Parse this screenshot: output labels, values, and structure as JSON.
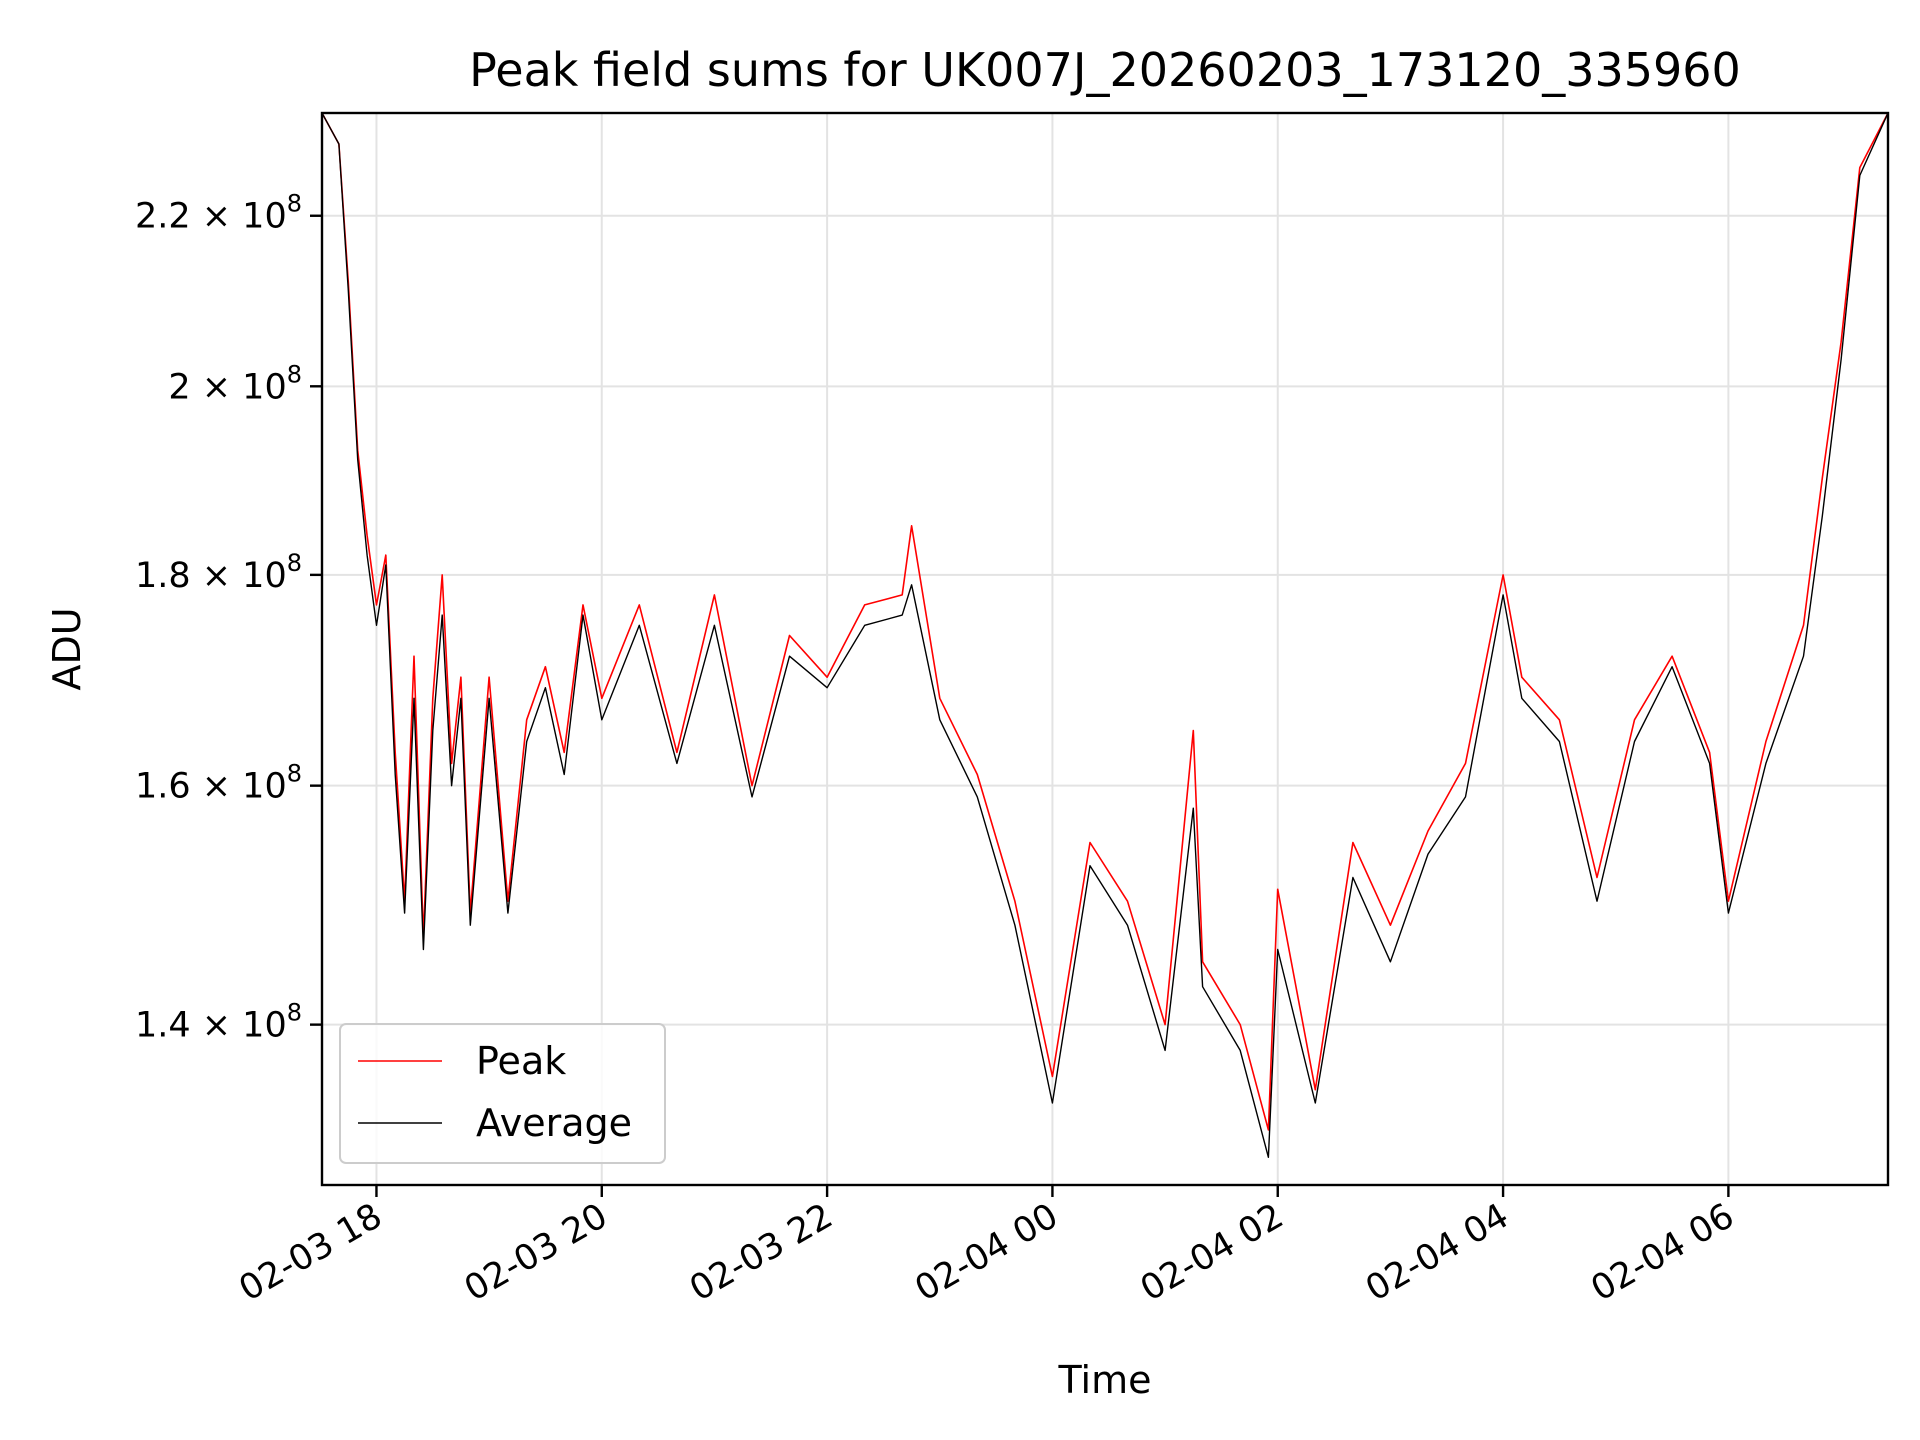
{
  "chart_data": {
    "type": "line",
    "title": "Peak field sums for UK007J_20260203_173120_335960",
    "xlabel": "Time",
    "ylabel": "ADU",
    "y_scale": "log",
    "grid": true,
    "legend_position": "lower-left",
    "xlim": [
      "2026-02-03 17:31",
      "2026-02-04 07:25"
    ],
    "ylim": [
      128000000,
      233000000
    ],
    "x_ticks": [
      {
        "value": "2026-02-03 18:00",
        "label": "02-03 18"
      },
      {
        "value": "2026-02-03 20:00",
        "label": "02-03 20"
      },
      {
        "value": "2026-02-03 22:00",
        "label": "02-03 22"
      },
      {
        "value": "2026-02-04 00:00",
        "label": "02-04 00"
      },
      {
        "value": "2026-02-04 02:00",
        "label": "02-04 02"
      },
      {
        "value": "2026-02-04 04:00",
        "label": "02-04 04"
      },
      {
        "value": "2026-02-04 06:00",
        "label": "02-04 06"
      }
    ],
    "y_ticks": [
      {
        "value": 140000000,
        "mantissa": "1.4",
        "base": "10",
        "exp": "8"
      },
      {
        "value": 160000000,
        "mantissa": "1.6",
        "base": "10",
        "exp": "8"
      },
      {
        "value": 180000000,
        "mantissa": "1.8",
        "base": "10",
        "exp": "8"
      },
      {
        "value": 200000000,
        "mantissa": "2",
        "base": "10",
        "exp": "8"
      },
      {
        "value": 220000000,
        "mantissa": "2.2",
        "base": "10",
        "exp": "8"
      }
    ],
    "series": [
      {
        "name": "Peak",
        "color": "#ff0000",
        "x": [
          "2026-02-03 17:31",
          "2026-02-03 17:40",
          "2026-02-03 17:45",
          "2026-02-03 17:50",
          "2026-02-03 17:55",
          "2026-02-03 18:00",
          "2026-02-03 18:05",
          "2026-02-03 18:10",
          "2026-02-03 18:15",
          "2026-02-03 18:20",
          "2026-02-03 18:25",
          "2026-02-03 18:30",
          "2026-02-03 18:35",
          "2026-02-03 18:40",
          "2026-02-03 18:45",
          "2026-02-03 18:50",
          "2026-02-03 19:00",
          "2026-02-03 19:10",
          "2026-02-03 19:20",
          "2026-02-03 19:30",
          "2026-02-03 19:40",
          "2026-02-03 19:50",
          "2026-02-03 20:00",
          "2026-02-03 20:20",
          "2026-02-03 20:40",
          "2026-02-03 21:00",
          "2026-02-03 21:20",
          "2026-02-03 21:40",
          "2026-02-03 22:00",
          "2026-02-03 22:20",
          "2026-02-03 22:40",
          "2026-02-03 22:45",
          "2026-02-03 23:00",
          "2026-02-03 23:20",
          "2026-02-03 23:40",
          "2026-02-04 00:00",
          "2026-02-04 00:20",
          "2026-02-04 00:40",
          "2026-02-04 01:00",
          "2026-02-04 01:15",
          "2026-02-04 01:20",
          "2026-02-04 01:40",
          "2026-02-04 01:55",
          "2026-02-04 02:00",
          "2026-02-04 02:20",
          "2026-02-04 02:40",
          "2026-02-04 03:00",
          "2026-02-04 03:20",
          "2026-02-04 03:40",
          "2026-02-04 04:00",
          "2026-02-04 04:10",
          "2026-02-04 04:30",
          "2026-02-04 04:50",
          "2026-02-04 05:10",
          "2026-02-04 05:30",
          "2026-02-04 05:50",
          "2026-02-04 06:00",
          "2026-02-04 06:20",
          "2026-02-04 06:40",
          "2026-02-04 06:50",
          "2026-02-04 07:00",
          "2026-02-04 07:10",
          "2026-02-04 07:25"
        ],
        "values": [
          233000000,
          229000000,
          212000000,
          193000000,
          184000000,
          177000000,
          182000000,
          163000000,
          150000000,
          172000000,
          147000000,
          168000000,
          180000000,
          162000000,
          170000000,
          149000000,
          170000000,
          150000000,
          166000000,
          171000000,
          163000000,
          177000000,
          168000000,
          177000000,
          163000000,
          178000000,
          160000000,
          174000000,
          170000000,
          177000000,
          178000000,
          185000000,
          168000000,
          161000000,
          150000000,
          136000000,
          155000000,
          150000000,
          140000000,
          165000000,
          145000000,
          140000000,
          132000000,
          151000000,
          135000000,
          155000000,
          148000000,
          156000000,
          162000000,
          180000000,
          170000000,
          166000000,
          152000000,
          166000000,
          172000000,
          163000000,
          150000000,
          164000000,
          175000000,
          190000000,
          205000000,
          226000000,
          233000000
        ]
      },
      {
        "name": "Average",
        "color": "#000000",
        "x": [
          "2026-02-03 17:31",
          "2026-02-03 17:40",
          "2026-02-03 17:45",
          "2026-02-03 17:50",
          "2026-02-03 17:55",
          "2026-02-03 18:00",
          "2026-02-03 18:05",
          "2026-02-03 18:10",
          "2026-02-03 18:15",
          "2026-02-03 18:20",
          "2026-02-03 18:25",
          "2026-02-03 18:30",
          "2026-02-03 18:35",
          "2026-02-03 18:40",
          "2026-02-03 18:45",
          "2026-02-03 18:50",
          "2026-02-03 19:00",
          "2026-02-03 19:10",
          "2026-02-03 19:20",
          "2026-02-03 19:30",
          "2026-02-03 19:40",
          "2026-02-03 19:50",
          "2026-02-03 20:00",
          "2026-02-03 20:20",
          "2026-02-03 20:40",
          "2026-02-03 21:00",
          "2026-02-03 21:20",
          "2026-02-03 21:40",
          "2026-02-03 22:00",
          "2026-02-03 22:20",
          "2026-02-03 22:40",
          "2026-02-03 22:45",
          "2026-02-03 23:00",
          "2026-02-03 23:20",
          "2026-02-03 23:40",
          "2026-02-04 00:00",
          "2026-02-04 00:20",
          "2026-02-04 00:40",
          "2026-02-04 01:00",
          "2026-02-04 01:15",
          "2026-02-04 01:20",
          "2026-02-04 01:40",
          "2026-02-04 01:55",
          "2026-02-04 02:00",
          "2026-02-04 02:20",
          "2026-02-04 02:40",
          "2026-02-04 03:00",
          "2026-02-04 03:20",
          "2026-02-04 03:40",
          "2026-02-04 04:00",
          "2026-02-04 04:10",
          "2026-02-04 04:30",
          "2026-02-04 04:50",
          "2026-02-04 05:10",
          "2026-02-04 05:30",
          "2026-02-04 05:50",
          "2026-02-04 06:00",
          "2026-02-04 06:20",
          "2026-02-04 06:40",
          "2026-02-04 06:50",
          "2026-02-04 07:00",
          "2026-02-04 07:10",
          "2026-02-04 07:25"
        ],
        "values": [
          233000000,
          229000000,
          211000000,
          192000000,
          182000000,
          175000000,
          181000000,
          161000000,
          149000000,
          168000000,
          146000000,
          165000000,
          176000000,
          160000000,
          168000000,
          148000000,
          168000000,
          149000000,
          164000000,
          169000000,
          161000000,
          176000000,
          166000000,
          175000000,
          162000000,
          175000000,
          159000000,
          172000000,
          169000000,
          175000000,
          176000000,
          179000000,
          166000000,
          159000000,
          148000000,
          134000000,
          153000000,
          148000000,
          138000000,
          158000000,
          143000000,
          138000000,
          130000000,
          146000000,
          134000000,
          152000000,
          145000000,
          154000000,
          159000000,
          178000000,
          168000000,
          164000000,
          150000000,
          164000000,
          171000000,
          162000000,
          149000000,
          162000000,
          172000000,
          186000000,
          203000000,
          225000000,
          233000000
        ]
      }
    ]
  }
}
